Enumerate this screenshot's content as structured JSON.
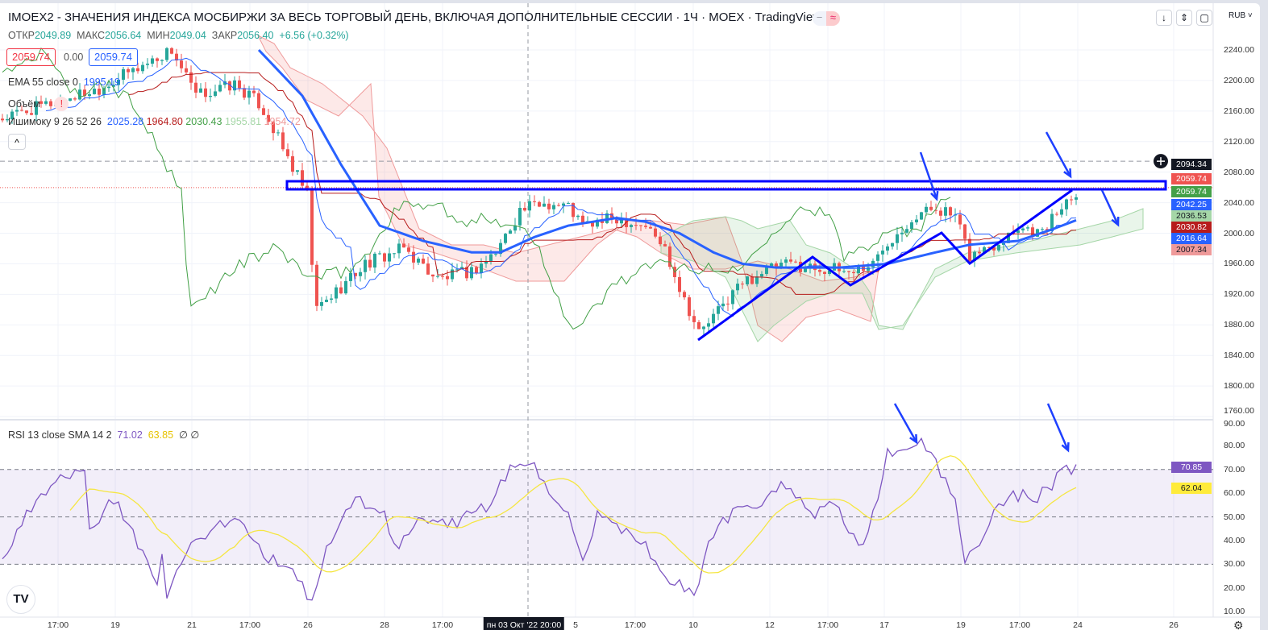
{
  "header": {
    "title": "IMOEX2 - ЗНАЧЕНИЯ ИНДЕКСА МОСБИРЖИ ЗА ВЕСЬ ТОРГОВЫЙ ДЕНЬ, ВКЛЮЧАЯ ДОПОЛНИТЕЛЬНЫЕ СЕССИИ · 1Ч · MOEX · TradingView",
    "open_label": "ОТКР",
    "open": "2049.89",
    "high_label": "МАКС",
    "high": "2056.64",
    "low_label": "МИН",
    "low": "2049.04",
    "close_label": "ЗАКР",
    "close": "2056.40",
    "change": "+6.56 (+0.32%)",
    "sell_price": "2059.74",
    "spread": "0.00",
    "buy_price": "2059.74"
  },
  "legend": {
    "ema_label": "EMA 55 close 0",
    "ema_value": "1995.19",
    "volume_label": "Объём",
    "volume_warning": "!",
    "ichimoku_label": "Ишимоку 9 26 52 26",
    "ichimoku_values": [
      "2025.28",
      "1964.80",
      "2030.43",
      "1955.81",
      "1954.72"
    ],
    "collapse": "^"
  },
  "rsi_legend": {
    "label": "RSI 13 close SMA 14 2",
    "rsi": "71.02",
    "sma": "63.85",
    "x1": "∅",
    "x2": "∅"
  },
  "toolbar": {
    "currency": "RUB ˅",
    "down": "↓",
    "fit": "⇕",
    "fullscreen": "▢",
    "logo": "TV"
  },
  "price_axis": [
    "2240.00",
    "2200.00",
    "2160.00",
    "2120.00",
    "2080.00",
    "2040.00",
    "2000.00",
    "1960.00",
    "1920.00",
    "1880.00",
    "1840.00",
    "1800.00",
    "1760.00"
  ],
  "price_badges": [
    {
      "v": "2094.34",
      "bg": "#131722",
      "fg": "#ffffff"
    },
    {
      "v": "2059.74",
      "bg": "#ef5350",
      "fg": "#ffffff"
    },
    {
      "v": "2059.74",
      "bg": "#43a047",
      "fg": "#ffffff"
    },
    {
      "v": "2042.25",
      "bg": "#2962ff",
      "fg": "#ffffff"
    },
    {
      "v": "2036.53",
      "bg": "#a5d6a7",
      "fg": "#131722"
    },
    {
      "v": "2030.82",
      "bg": "#b71c1c",
      "fg": "#ffffff"
    },
    {
      "v": "2016.64",
      "bg": "#2962ff",
      "fg": "#ffffff"
    },
    {
      "v": "2007.34",
      "bg": "#ef9a9a",
      "fg": "#131722"
    }
  ],
  "rsi_axis": [
    "90.00",
    "80.00",
    "70.00",
    "60.00",
    "50.00",
    "40.00",
    "30.00",
    "20.00",
    "10.00"
  ],
  "rsi_badges": [
    {
      "v": "70.85",
      "bg": "#7e57c2",
      "fg": "#ffffff"
    },
    {
      "v": "62.04",
      "bg": "#ffeb3b",
      "fg": "#131722"
    }
  ],
  "time_axis": [
    "17:00",
    "19",
    "21",
    "17:00",
    "26",
    "28",
    "17:00",
    "пн 03 Окт '22  20:00",
    "5",
    "17:00",
    "10",
    "12",
    "17:00",
    "17",
    "19",
    "17:00",
    "24",
    "26"
  ],
  "colors": {
    "up": "#26a69a",
    "down": "#ef5350",
    "ema": "#2962ff",
    "rsi": "#7e57c2",
    "rsi_sma": "#ffeb3b",
    "drawing": "#0000ff"
  },
  "chart_data": {
    "type": "candlestick",
    "bar_interval": "1H",
    "price_anchors": [
      [
        0,
        2150
      ],
      [
        20,
        2190
      ],
      [
        35,
        2240
      ],
      [
        40,
        2180
      ],
      [
        48,
        2195
      ],
      [
        53,
        2170
      ],
      [
        55,
        2150
      ],
      [
        58,
        2110
      ],
      [
        63,
        2050
      ],
      [
        64,
        1960
      ],
      [
        65,
        1900
      ],
      [
        70,
        1930
      ],
      [
        75,
        1960
      ],
      [
        83,
        1980
      ],
      [
        90,
        1940
      ],
      [
        97,
        1950
      ],
      [
        102,
        1975
      ],
      [
        107,
        2030
      ],
      [
        112,
        2040
      ],
      [
        117,
        2035
      ],
      [
        120,
        2010
      ],
      [
        127,
        2020
      ],
      [
        133,
        2010
      ],
      [
        137,
        1980
      ],
      [
        140,
        1930
      ],
      [
        144,
        1870
      ],
      [
        147,
        1890
      ],
      [
        152,
        1930
      ],
      [
        157,
        1950
      ],
      [
        163,
        1960
      ],
      [
        168,
        1955
      ],
      [
        175,
        1950
      ],
      [
        180,
        1960
      ],
      [
        183,
        1990
      ],
      [
        188,
        2020
      ],
      [
        193,
        2035
      ],
      [
        197,
        2020
      ],
      [
        200,
        1970
      ],
      [
        205,
        1985
      ],
      [
        210,
        2010
      ],
      [
        215,
        2000
      ],
      [
        220,
        2045
      ],
      [
        222,
        2056
      ]
    ],
    "ema_anchors": [
      [
        53,
        2240
      ],
      [
        62,
        2180
      ],
      [
        70,
        2090
      ],
      [
        78,
        2010
      ],
      [
        87,
        1990
      ],
      [
        97,
        1975
      ],
      [
        103,
        1975
      ],
      [
        110,
        1995
      ],
      [
        117,
        2010
      ],
      [
        127,
        2020
      ],
      [
        133,
        2015
      ],
      [
        140,
        2000
      ],
      [
        147,
        1975
      ],
      [
        153,
        1960
      ],
      [
        160,
        1955
      ],
      [
        173,
        1955
      ],
      [
        183,
        1960
      ],
      [
        193,
        1975
      ],
      [
        200,
        1985
      ],
      [
        210,
        1990
      ],
      [
        217,
        2005
      ],
      [
        222,
        2017
      ]
    ],
    "rsi_anchors": [
      [
        0,
        30
      ],
      [
        3,
        45
      ],
      [
        5,
        50
      ],
      [
        11,
        64
      ],
      [
        17,
        70
      ],
      [
        18,
        44
      ],
      [
        23,
        57
      ],
      [
        27,
        44
      ],
      [
        32,
        20
      ],
      [
        33,
        37
      ],
      [
        34,
        13
      ],
      [
        38,
        37
      ],
      [
        43,
        44
      ],
      [
        48,
        50
      ],
      [
        55,
        33
      ],
      [
        59,
        30
      ],
      [
        64,
        13
      ],
      [
        67,
        37
      ],
      [
        73,
        57
      ],
      [
        78,
        54
      ],
      [
        82,
        37
      ],
      [
        87,
        50
      ],
      [
        93,
        47
      ],
      [
        100,
        54
      ],
      [
        105,
        71
      ],
      [
        110,
        73
      ],
      [
        113,
        57
      ],
      [
        117,
        50
      ],
      [
        120,
        30
      ],
      [
        123,
        50
      ],
      [
        130,
        44
      ],
      [
        135,
        33
      ],
      [
        138,
        23
      ],
      [
        143,
        17
      ],
      [
        147,
        44
      ],
      [
        150,
        50
      ],
      [
        155,
        54
      ],
      [
        162,
        64
      ],
      [
        167,
        50
      ],
      [
        172,
        55
      ],
      [
        177,
        37
      ],
      [
        180,
        50
      ],
      [
        183,
        78
      ],
      [
        190,
        81
      ],
      [
        193,
        74
      ],
      [
        197,
        57
      ],
      [
        199,
        30
      ],
      [
        203,
        44
      ],
      [
        208,
        61
      ],
      [
        213,
        57
      ],
      [
        217,
        64
      ],
      [
        218,
        68
      ],
      [
        222,
        71
      ]
    ],
    "rsi_levels": [
      70,
      50,
      30
    ],
    "price_range": [
      1760,
      2240
    ],
    "rsi_range": [
      10,
      90
    ]
  }
}
